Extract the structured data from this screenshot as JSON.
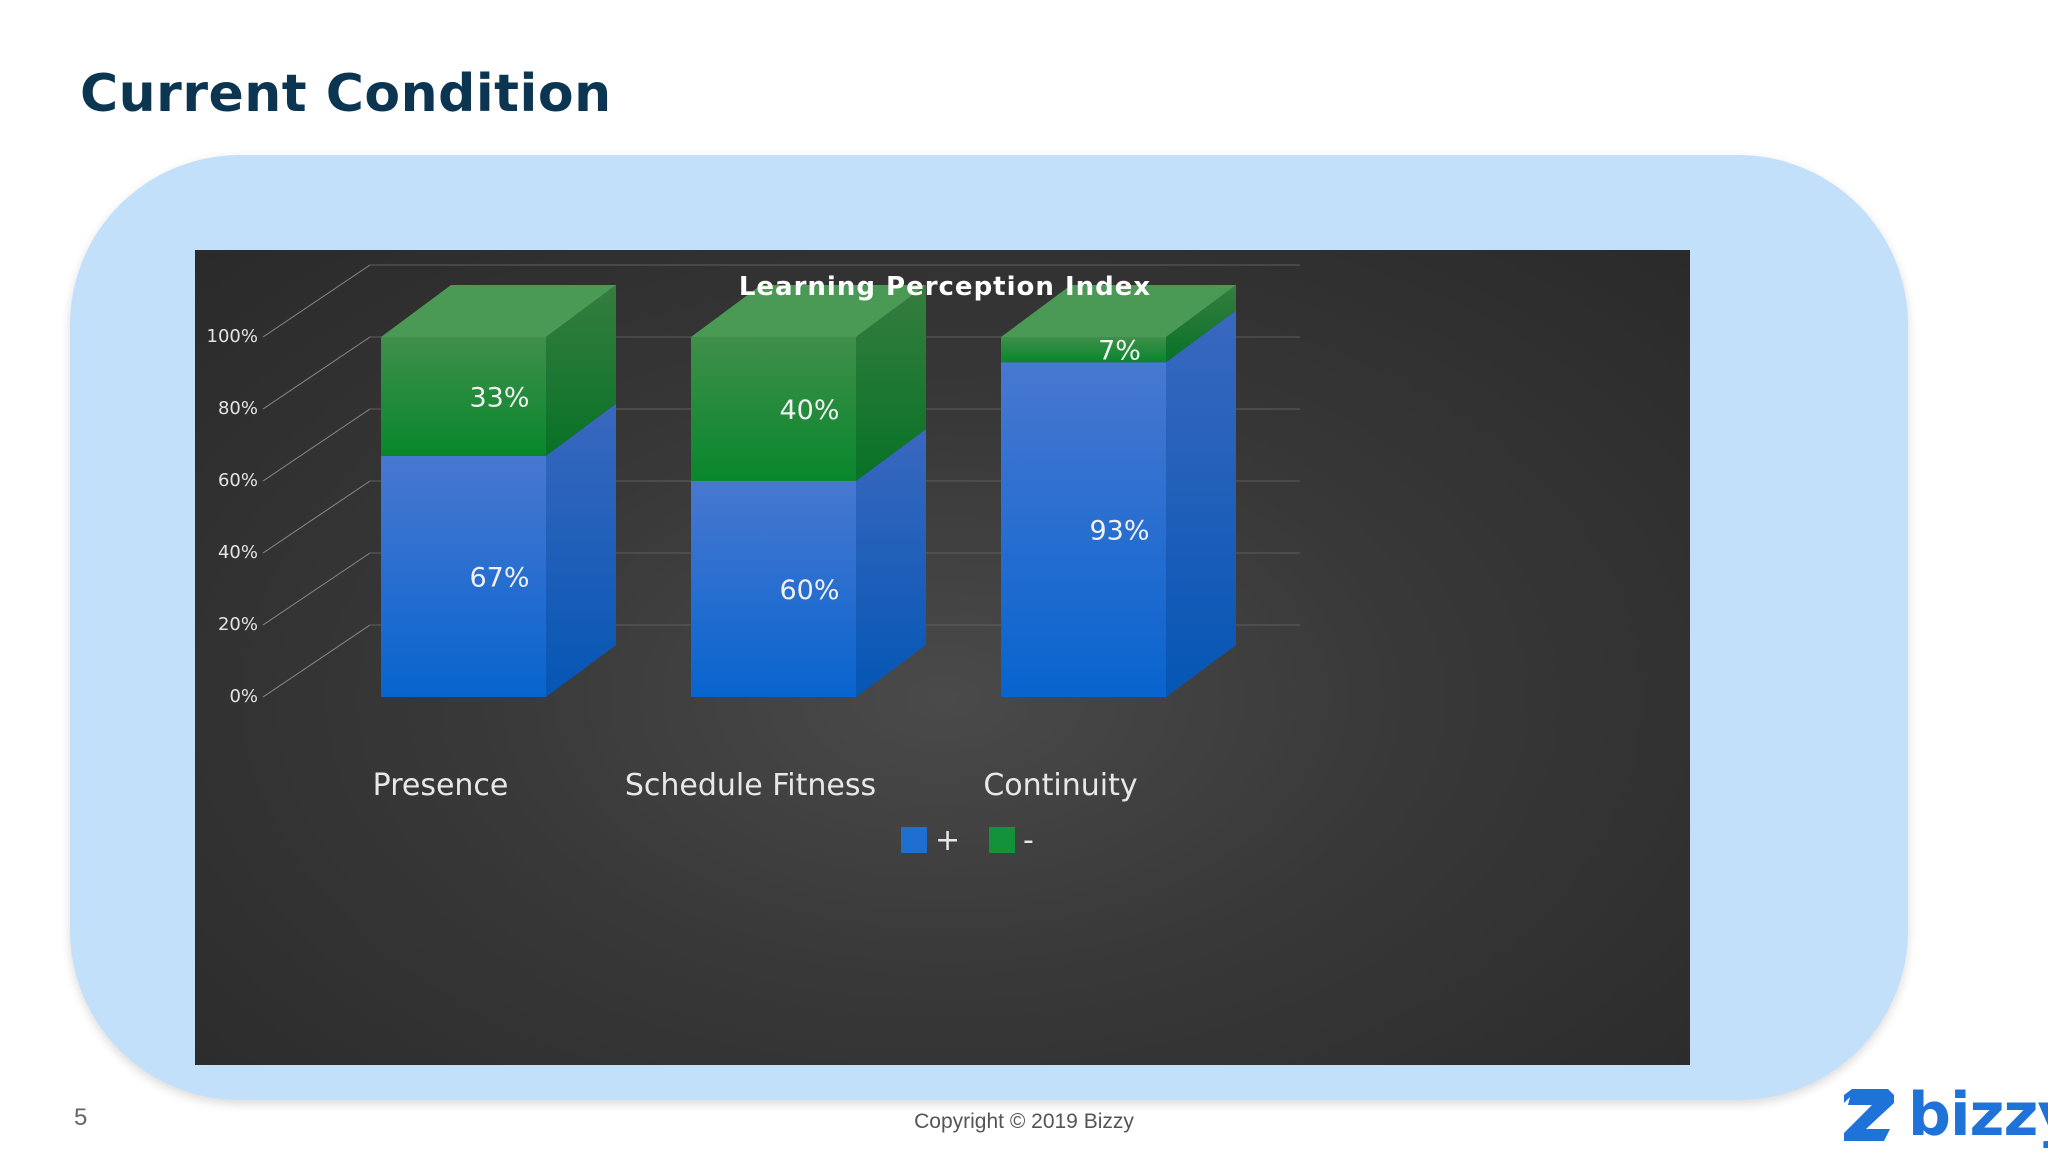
{
  "slide": {
    "title": "Current Condition",
    "page_number": "5",
    "copyright": "Copyright © 2019 Bizzy",
    "brand": "bizzy"
  },
  "colors": {
    "title": "#0b3550",
    "blob": "#c3e0fb",
    "positive": "#1f6fd0",
    "negative": "#13923a",
    "brand": "#1f73d8"
  },
  "chart_data": {
    "type": "bar",
    "stacked": true,
    "three_d": true,
    "title": "Learning Perception Index",
    "categories": [
      "Presence",
      "Schedule Fitness",
      "Continuity"
    ],
    "series": [
      {
        "name": "+",
        "color": "#1f6fd0",
        "values": [
          67,
          60,
          93
        ],
        "labels": [
          "67%",
          "60%",
          "93%"
        ]
      },
      {
        "name": "-",
        "color": "#13923a",
        "values": [
          33,
          40,
          7
        ],
        "labels": [
          "33%",
          "40%",
          "7%"
        ]
      }
    ],
    "y_ticks": [
      "0%",
      "20%",
      "40%",
      "60%",
      "80%",
      "100%"
    ],
    "ylim": [
      0,
      100
    ],
    "grid": true,
    "legend_position": "bottom"
  }
}
